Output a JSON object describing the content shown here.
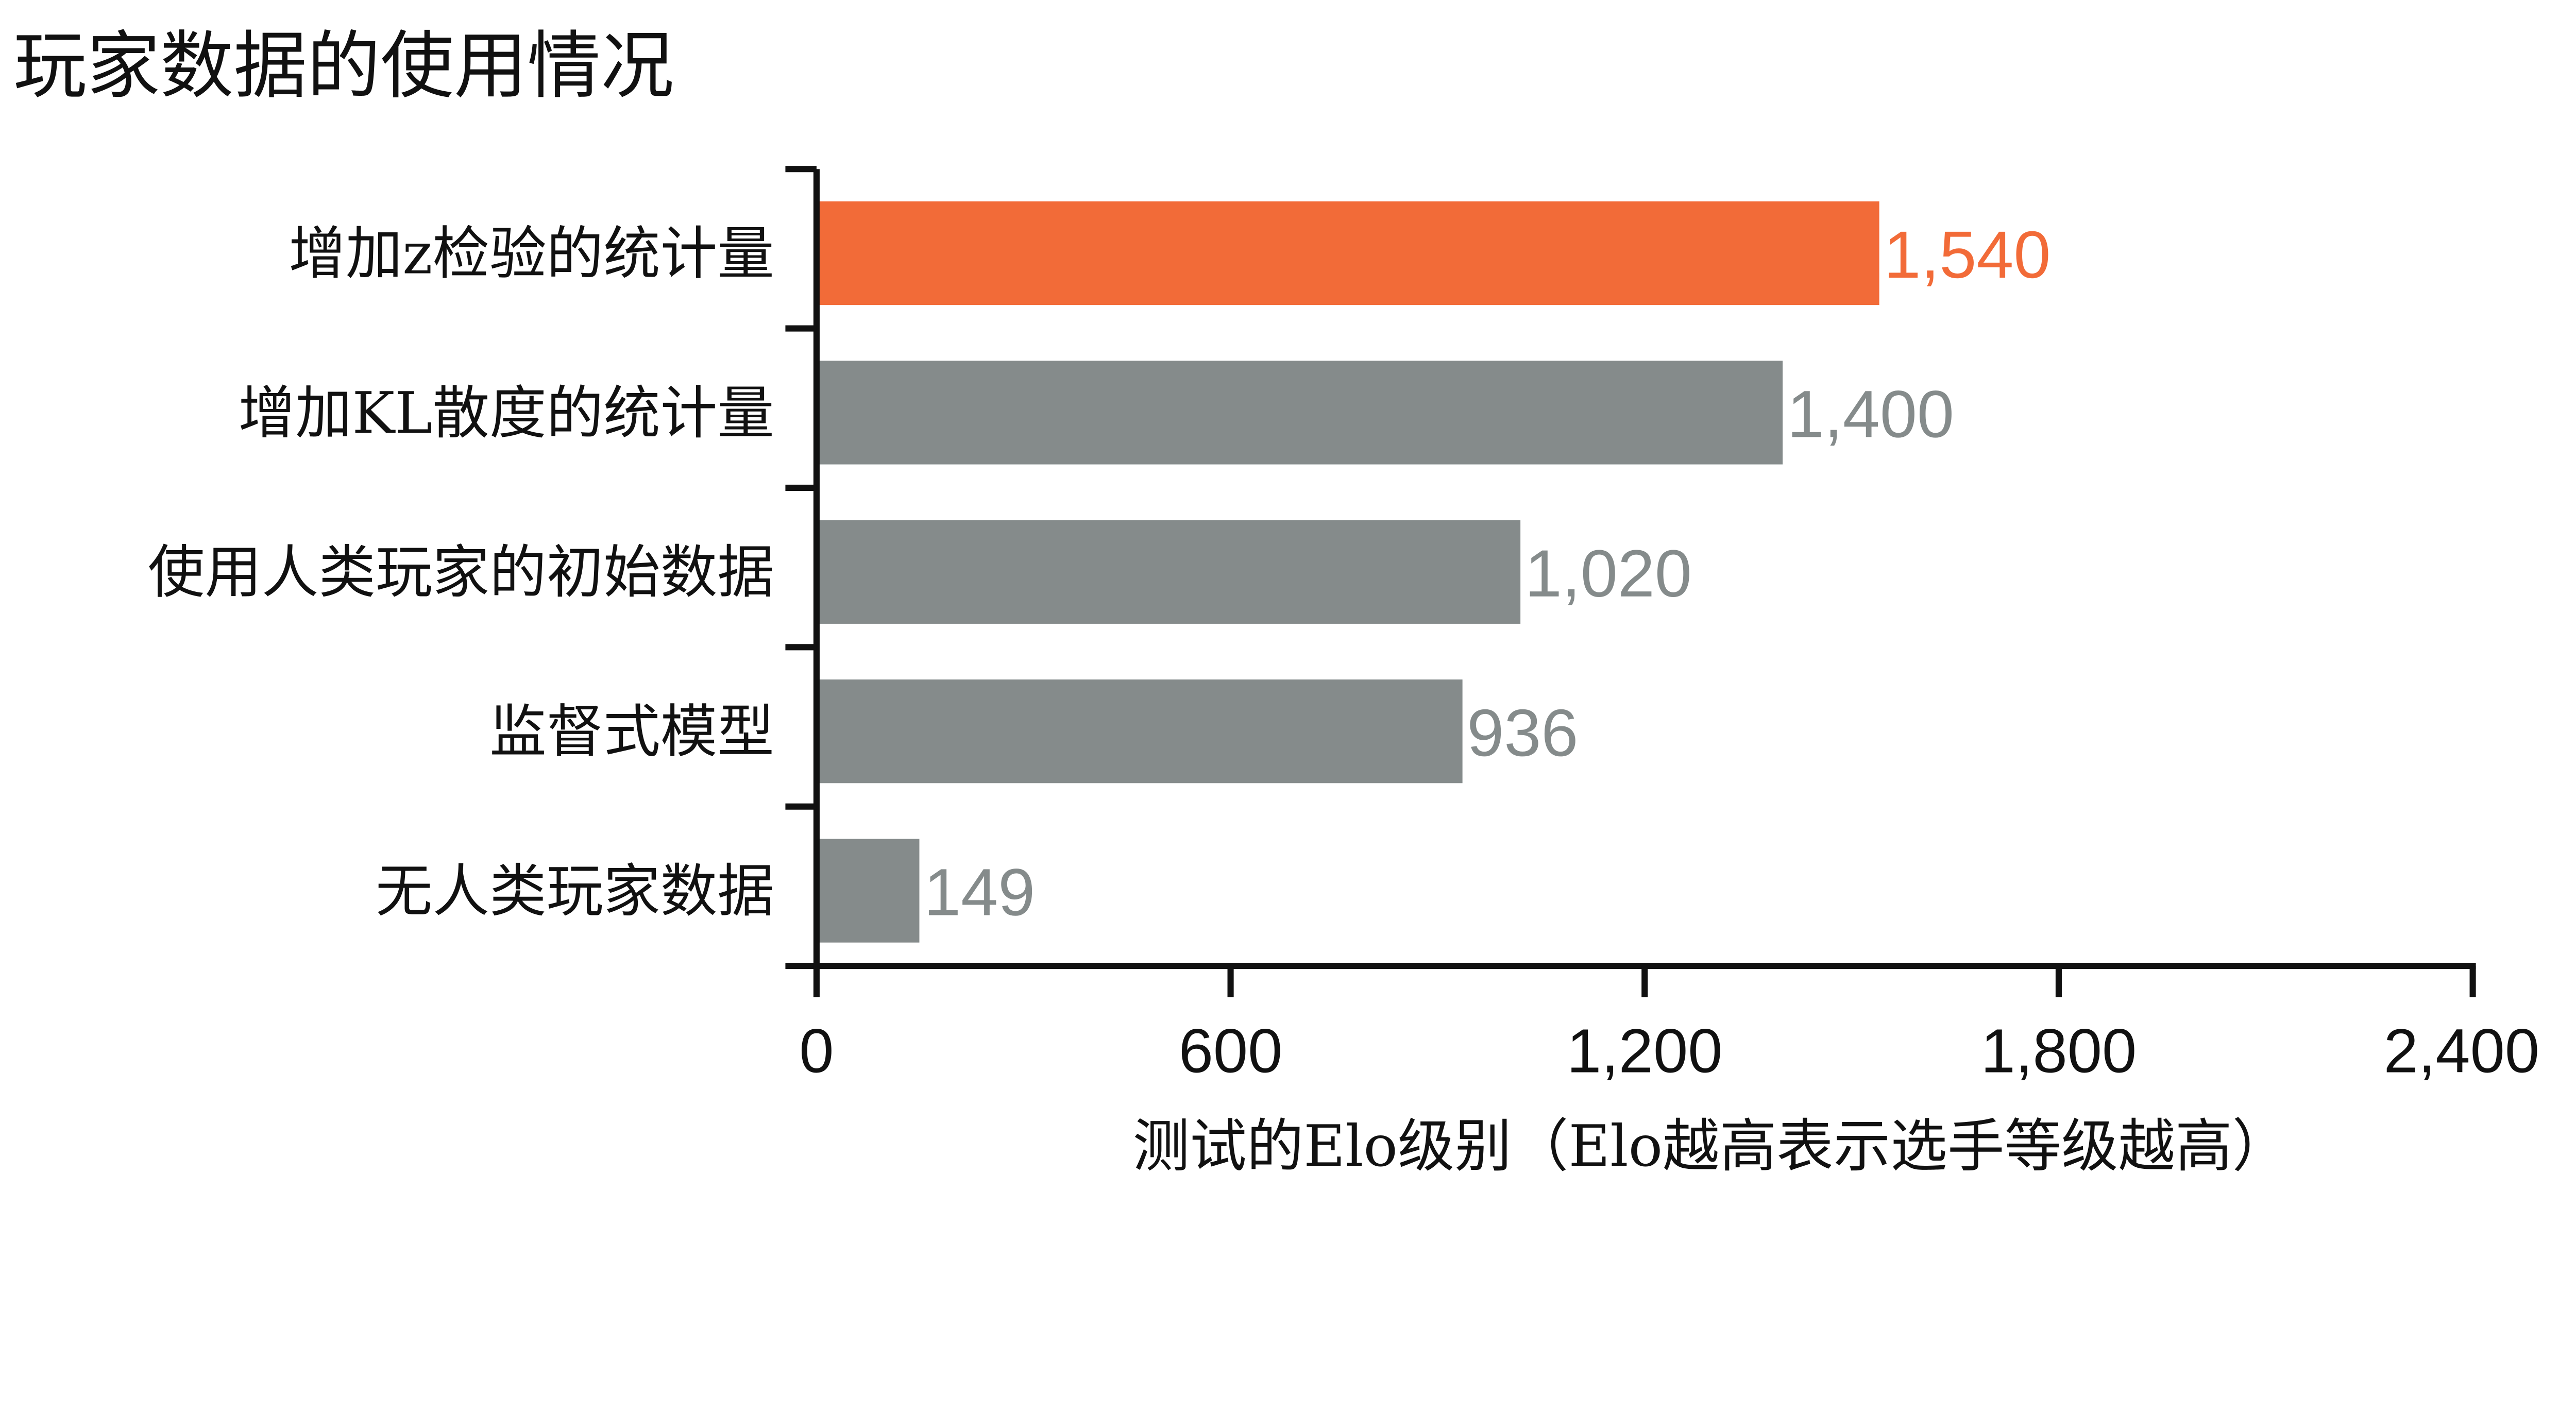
{
  "chart_data": {
    "type": "bar",
    "orientation": "horizontal",
    "title": "玩家数据的使用情况",
    "xlabel": "测试的Elo级别（Elo越高表示选手等级越高）",
    "ylabel": "",
    "categories": [
      "增加z检验的统计量",
      "增加KL散度的统计量",
      "使用人类玩家的初始数据",
      "监督式模型",
      "无人类玩家数据"
    ],
    "values": [
      1540,
      1400,
      1020,
      936,
      149
    ],
    "value_labels": [
      "1,540",
      "1,400",
      "1,020",
      "936",
      "149"
    ],
    "xlim": [
      0,
      2400
    ],
    "xticks": [
      0,
      600,
      1200,
      1800,
      2400
    ],
    "xtick_labels": [
      "0",
      "600",
      "1,200",
      "1,800",
      "2,400"
    ],
    "grid": false,
    "colors": {
      "highlight": "#F26B38",
      "default": "#858B8B",
      "axis": "#111111"
    },
    "highlight_index": 0
  }
}
